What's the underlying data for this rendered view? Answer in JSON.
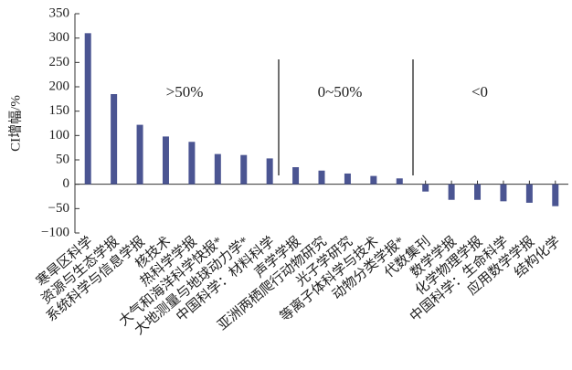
{
  "chart_data": {
    "type": "bar",
    "y_label": "CI增幅/%",
    "categories": [
      "寒旱区科学",
      "资源与生态学报",
      "系统科学与信息学报",
      "核技术",
      "热科学学报",
      "大气和海洋科学快报*",
      "大地测量与地球动力学*",
      "中国科学：材料科学",
      "声学学报",
      "亚洲两栖爬行动物研究",
      "光子学研究",
      "等离子体科学与技术",
      "动物分类学报*",
      "代数集刊",
      "数学学报",
      "化学物理学报",
      "中国科学：生命科学",
      "应用数学学报",
      "结构化学"
    ],
    "values": [
      310,
      185,
      122,
      98,
      87,
      62,
      60,
      53,
      35,
      28,
      22,
      17,
      12,
      -15,
      -32,
      -32,
      -35,
      -38,
      -45
    ],
    "color": "#4b5592",
    "ylim": [
      -100,
      350
    ],
    "yticks": [
      {
        "value": -100,
        "label": "−100"
      },
      {
        "value": -50,
        "label": "−50"
      },
      0,
      50,
      100,
      150,
      200,
      250,
      300,
      350
    ],
    "annotations": [
      ">50%",
      "0~50%",
      "<0"
    ]
  }
}
